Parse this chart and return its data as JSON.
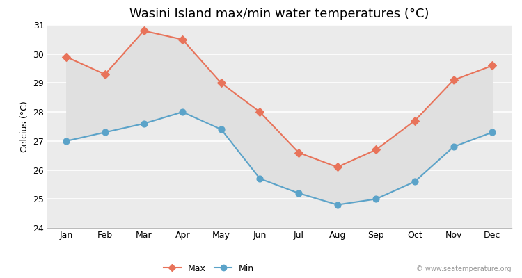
{
  "title": "Wasini Island max/min water temperatures (°C)",
  "months": [
    "Jan",
    "Feb",
    "Mar",
    "Apr",
    "May",
    "Jun",
    "Jul",
    "Aug",
    "Sep",
    "Oct",
    "Nov",
    "Dec"
  ],
  "max_temps": [
    29.9,
    29.3,
    30.8,
    30.5,
    29.0,
    28.0,
    26.6,
    26.1,
    26.7,
    27.7,
    29.1,
    29.6
  ],
  "min_temps": [
    27.0,
    27.3,
    27.6,
    28.0,
    27.4,
    25.7,
    25.2,
    24.8,
    25.0,
    25.6,
    26.8,
    27.3
  ],
  "max_color": "#e8735a",
  "min_color": "#5ba3c9",
  "fill_color": "#e0e0e0",
  "bg_color": "#ebebeb",
  "ylabel": "Celcius (°C)",
  "ylim": [
    24,
    31
  ],
  "yticks": [
    24,
    25,
    26,
    27,
    28,
    29,
    30,
    31
  ],
  "watermark": "© www.seatemperature.org",
  "title_fontsize": 13,
  "label_fontsize": 9,
  "tick_fontsize": 9
}
